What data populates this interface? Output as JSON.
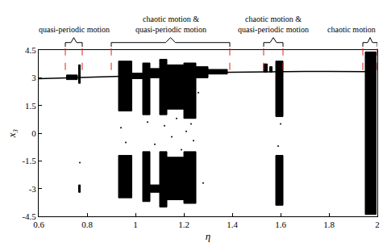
{
  "chart_data": {
    "type": "scatter",
    "xlabel": "η",
    "ylabel": "x₃",
    "xlim": [
      0.6,
      2
    ],
    "ylim": [
      -4.5,
      4.5
    ],
    "xticks": [
      0.6,
      0.8,
      1,
      1.2,
      1.4,
      1.6,
      1.8,
      2
    ],
    "yticks": [
      -4.5,
      -3,
      -1.5,
      0,
      1.5,
      3,
      4.5
    ],
    "grid": false,
    "color": "#000000",
    "series": [
      {
        "type": "line",
        "x": [
          0.6,
          0.65,
          0.7,
          0.75,
          0.8,
          0.85,
          0.9,
          1.0,
          1.1,
          1.2,
          1.3,
          1.4,
          1.5,
          1.6,
          1.7,
          1.8,
          1.9,
          1.95
        ],
        "values": [
          2.95,
          2.97,
          2.99,
          3.0,
          3.01,
          3.03,
          3.05,
          3.1,
          3.18,
          3.24,
          3.28,
          3.3,
          3.32,
          3.33,
          3.34,
          3.34,
          3.34,
          3.33
        ]
      },
      {
        "type": "scatter",
        "x": [
          0.94,
          0.96,
          1.05,
          1.08,
          1.12,
          1.15,
          1.17,
          1.19,
          1.21,
          1.23,
          1.24,
          1.26,
          1.28,
          1.6,
          1.59,
          0.77
        ],
        "values": [
          0.3,
          -0.5,
          0.6,
          -0.6,
          0.4,
          -0.2,
          0.8,
          -0.9,
          0.1,
          0.5,
          -0.4,
          2.2,
          -2.7,
          0.5,
          -0.7,
          -1.6
        ]
      }
    ],
    "bands": [
      {
        "x0": 0.715,
        "x1": 0.76,
        "low": 2.9,
        "high": 3.15
      },
      {
        "x0": 0.765,
        "x1": 0.772,
        "low": 2.7,
        "high": 3.7
      },
      {
        "x0": 0.765,
        "x1": 0.772,
        "low": -3.2,
        "high": -2.8
      },
      {
        "x0": 0.93,
        "x1": 0.985,
        "low": 1.2,
        "high": 3.9
      },
      {
        "x0": 0.93,
        "x1": 0.985,
        "low": -3.5,
        "high": -1.2
      },
      {
        "x0": 0.985,
        "x1": 1.03,
        "low": 2.95,
        "high": 3.25
      },
      {
        "x0": 1.03,
        "x1": 1.06,
        "low": 1.0,
        "high": 3.8
      },
      {
        "x0": 1.03,
        "x1": 1.06,
        "low": -3.7,
        "high": -1.0
      },
      {
        "x0": 1.06,
        "x1": 1.1,
        "low": 3.0,
        "high": 3.5
      },
      {
        "x0": 1.06,
        "x1": 1.1,
        "low": -3.2,
        "high": -2.8
      },
      {
        "x0": 1.1,
        "x1": 1.13,
        "low": 1.0,
        "high": 4.0
      },
      {
        "x0": 1.1,
        "x1": 1.13,
        "low": -4.0,
        "high": -1.0
      },
      {
        "x0": 1.13,
        "x1": 1.2,
        "low": 1.3,
        "high": 3.7
      },
      {
        "x0": 1.13,
        "x1": 1.2,
        "low": -3.6,
        "high": -1.3
      },
      {
        "x0": 1.2,
        "x1": 1.25,
        "low": 0.8,
        "high": 3.8
      },
      {
        "x0": 1.2,
        "x1": 1.25,
        "low": -3.8,
        "high": -1.0
      },
      {
        "x0": 1.25,
        "x1": 1.3,
        "low": 3.0,
        "high": 3.6
      },
      {
        "x0": 1.3,
        "x1": 1.38,
        "low": 3.2,
        "high": 3.45
      },
      {
        "x0": 1.53,
        "x1": 1.545,
        "low": 3.3,
        "high": 3.75
      },
      {
        "x0": 1.555,
        "x1": 1.565,
        "low": 3.3,
        "high": 3.6
      },
      {
        "x0": 1.58,
        "x1": 1.61,
        "low": 0.9,
        "high": 3.9
      },
      {
        "x0": 1.58,
        "x1": 1.61,
        "low": -3.9,
        "high": -1.2
      },
      {
        "x0": 1.95,
        "x1": 1.995,
        "low": -4.4,
        "high": 4.4
      }
    ],
    "annotations": [
      {
        "text": "quasi-periodic motion",
        "x0": 0.71,
        "x1": 0.78
      },
      {
        "text": "chaotic motion &\nquasi-periodic motion",
        "x0": 0.9,
        "x1": 1.39
      },
      {
        "text": "chaotic motion &\nquasi-periodic motion",
        "x0": 1.53,
        "x1": 1.61
      },
      {
        "text": "chaotic motion",
        "x0": 1.94,
        "x1": 2.0
      }
    ]
  }
}
